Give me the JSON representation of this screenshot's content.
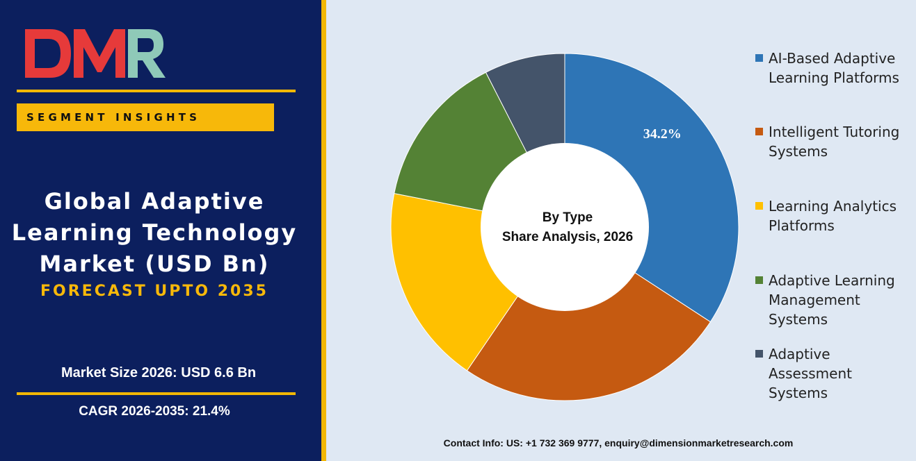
{
  "logo": {
    "text": "DMR",
    "color_main": "#e63a3a",
    "color_accent": "#8fc9b8"
  },
  "segment_banner": "SEGMENT INSIGHTS",
  "title": {
    "lines": [
      "Global Adaptive",
      "Learning Technology",
      "Market (USD Bn)"
    ],
    "forecast": "FORECAST UPTO 2035"
  },
  "market_size": "Market Size 2026: USD 6.6 Bn",
  "cagr": "CAGR 2026-2035: 21.4%",
  "contact": "Contact Info: US: +1 732 369 9777, enquiry@dimensionmarketresearch.com",
  "colors": {
    "panel": "#0c1f5e",
    "gold": "#f2b705",
    "background": "#dfe8f3"
  },
  "chart_data": {
    "type": "pie",
    "variant": "donut",
    "center_title": "By Type",
    "center_subtitle": "Share Analysis, 2026",
    "categories": [
      "AI-Based Adaptive Learning Platforms",
      "Intelligent Tutoring Systems",
      "Learning Analytics Platforms",
      "Adaptive Learning Management Systems",
      "Adaptive Assessment Systems"
    ],
    "values": [
      34.2,
      25.3,
      18.6,
      14.4,
      7.5
    ],
    "colors": [
      "#2e75b6",
      "#c55a11",
      "#ffc000",
      "#548235",
      "#44546a"
    ],
    "data_labels": [
      "34.2%",
      "",
      "",
      "",
      ""
    ],
    "legend_position": "right"
  }
}
